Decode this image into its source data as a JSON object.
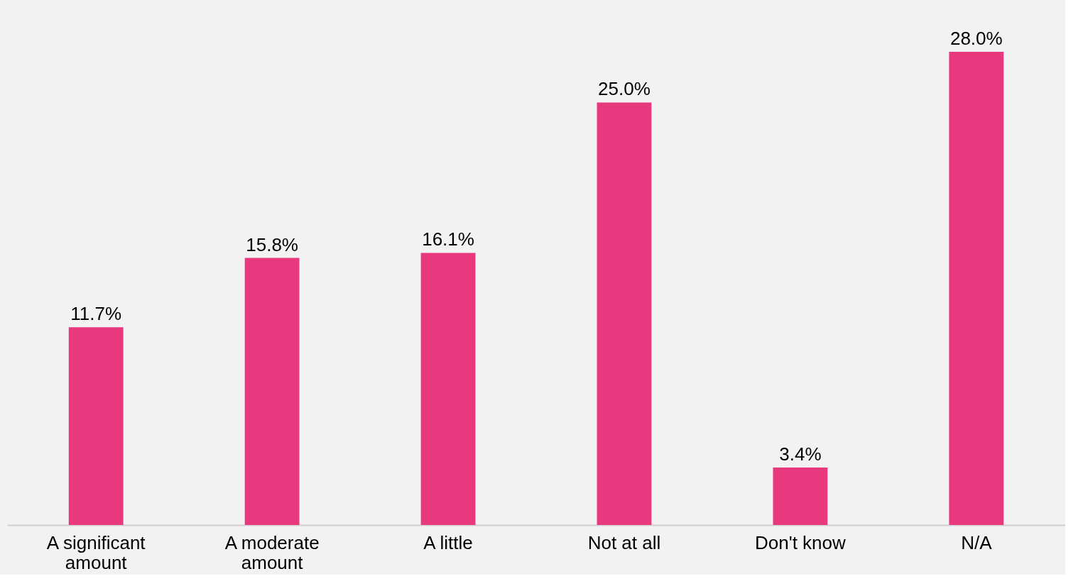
{
  "chart_data": {
    "type": "bar",
    "categories": [
      "A significant amount",
      "A moderate amount",
      "A little",
      "Not at all",
      "Don't know",
      "N/A"
    ],
    "values": [
      11.7,
      15.8,
      16.1,
      25.0,
      3.4,
      28.0
    ],
    "color": "#e8397f",
    "value_labels": [
      "11.7%",
      "15.8%",
      "16.1%",
      "25.0%",
      "3.4%",
      "28.0%"
    ]
  }
}
